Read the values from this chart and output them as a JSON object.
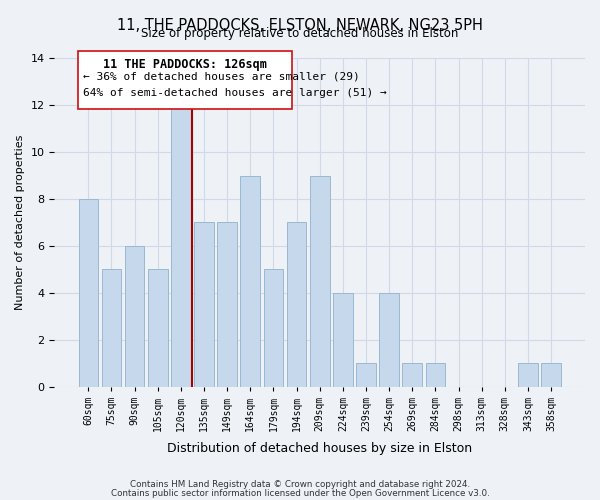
{
  "title": "11, THE PADDOCKS, ELSTON, NEWARK, NG23 5PH",
  "subtitle": "Size of property relative to detached houses in Elston",
  "xlabel": "Distribution of detached houses by size in Elston",
  "ylabel": "Number of detached properties",
  "bar_labels": [
    "60sqm",
    "75sqm",
    "90sqm",
    "105sqm",
    "120sqm",
    "135sqm",
    "149sqm",
    "164sqm",
    "179sqm",
    "194sqm",
    "209sqm",
    "224sqm",
    "239sqm",
    "254sqm",
    "269sqm",
    "284sqm",
    "298sqm",
    "313sqm",
    "328sqm",
    "343sqm",
    "358sqm"
  ],
  "bar_values": [
    8,
    5,
    6,
    5,
    12,
    7,
    7,
    9,
    5,
    7,
    9,
    4,
    1,
    4,
    1,
    1,
    0,
    0,
    0,
    1,
    1
  ],
  "bar_color": "#c6d9ec",
  "bar_edge_color": "#9ab8d0",
  "vline_color": "#aa0000",
  "ylim": [
    0,
    14
  ],
  "yticks": [
    0,
    2,
    4,
    6,
    8,
    10,
    12,
    14
  ],
  "annotation_title": "11 THE PADDOCKS: 126sqm",
  "annotation_line1": "← 36% of detached houses are smaller (29)",
  "annotation_line2": "64% of semi-detached houses are larger (51) →",
  "footer1": "Contains HM Land Registry data © Crown copyright and database right 2024.",
  "footer2": "Contains public sector information licensed under the Open Government Licence v3.0.",
  "bg_color": "#eef2f7",
  "grid_color": "#d0dae6"
}
